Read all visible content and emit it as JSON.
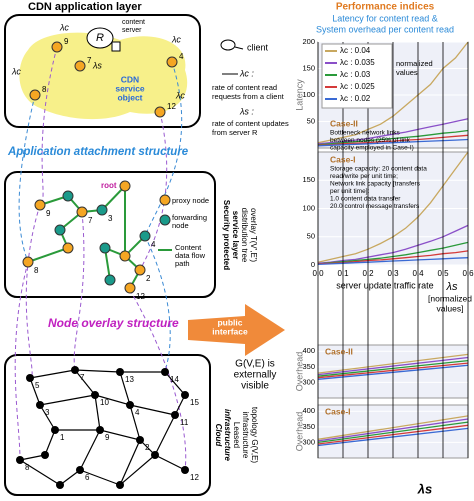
{
  "diagram": {
    "app_layer": {
      "title": "CDN application layer",
      "server": "R",
      "server_label": [
        "content",
        "server"
      ],
      "service_object": [
        "CDN",
        "service",
        "object"
      ],
      "nodes": [
        "9",
        "7",
        "8",
        "4",
        "12"
      ],
      "rates": [
        "λc",
        "λc",
        "λc",
        "λc",
        "λs"
      ]
    },
    "app_legend": {
      "client": "client",
      "lambda_c": "λc :",
      "lambda_c_desc": [
        "rate of content read",
        "requests from a client"
      ],
      "lambda_s": "λs :",
      "lambda_s_desc": [
        "rate of content updates",
        "from server R"
      ]
    },
    "attachment": "Application attachment structure",
    "service_layer": {
      "title": [
        "Security protected",
        "service layer",
        "distribution tree",
        "overlay T(V',E')"
      ],
      "nodes": [
        "9",
        "7",
        "3",
        "root",
        "8",
        "4",
        "2",
        "12"
      ],
      "legend": {
        "proxy": "proxy node",
        "forwarding": [
          "forwarding",
          "node"
        ],
        "flow": [
          "Content",
          "data flow",
          "path"
        ]
      }
    },
    "overlay": "Node overlay structure",
    "public_interface": [
      "public",
      "interface"
    ],
    "visibility": [
      "G(V,E) is",
      "externally",
      "visible"
    ],
    "infrastructure": {
      "title": [
        "Cloud",
        "infrastructure",
        "Leased",
        "infrastructure",
        "topology G(V,E)"
      ],
      "nodes": [
        "5",
        "7",
        "13",
        "14",
        "15",
        "3",
        "4",
        "10",
        "11",
        "1",
        "9",
        "2",
        "8",
        "6",
        "12"
      ]
    }
  },
  "performance": {
    "title": "Performance indices",
    "subtitle": [
      "Latency for content read &",
      "System overhead per content read"
    ]
  },
  "chart_data": [
    {
      "type": "line",
      "ylabel": "Latency",
      "x": [
        0,
        0.05,
        0.1,
        0.15,
        0.2,
        0.25,
        0.3,
        0.35,
        0.4,
        0.45,
        0.5,
        0.55,
        0.6
      ],
      "xlim": [
        0,
        0.6
      ],
      "ylim": [
        0,
        200
      ],
      "yticks": [
        50,
        100,
        150,
        200
      ],
      "series": [
        {
          "name": "λc : 0.04",
          "color": "#c8a860",
          "values": [
            10,
            15,
            20,
            25,
            35,
            45,
            60,
            80,
            100,
            120,
            150,
            170,
            200
          ]
        },
        {
          "name": "λc : 0.035",
          "color": "#8a4fc8",
          "values": [
            8,
            10,
            12,
            15,
            18,
            22,
            26,
            30,
            35,
            40,
            45,
            50,
            55
          ]
        },
        {
          "name": "λc : 0.03",
          "color": "#2a9a3a",
          "values": [
            6,
            8,
            10,
            12,
            14,
            16,
            18,
            20,
            22,
            25,
            28,
            30,
            33
          ]
        },
        {
          "name": "λc : 0.025",
          "color": "#d43a3a",
          "values": [
            5,
            6,
            8,
            9,
            10,
            12,
            13,
            15,
            16,
            18,
            20,
            22,
            24
          ]
        },
        {
          "name": "λc : 0.02",
          "color": "#3a6ad4",
          "values": [
            4,
            5,
            6,
            7,
            8,
            9,
            10,
            11,
            12,
            13,
            14,
            15,
            16
          ]
        }
      ],
      "annotations": {
        "case": "Case-II",
        "note": [
          "Bottleneck network links",
          "between nodes (25% of link",
          "capacity employed in Case-I)"
        ],
        "legend_note": [
          "normalized",
          "values"
        ]
      }
    },
    {
      "type": "line",
      "x": [
        0,
        0.05,
        0.1,
        0.15,
        0.2,
        0.25,
        0.3,
        0.35,
        0.4,
        0.45,
        0.5,
        0.55,
        0.6
      ],
      "xlim": [
        0,
        0.6
      ],
      "ylim": [
        0,
        200
      ],
      "yticks": [
        0,
        50,
        100,
        150
      ],
      "xticks": [
        {
          "value": 0,
          "label": "0.0"
        },
        0.1,
        0.2,
        0.3,
        0.4,
        0.5,
        0.6
      ],
      "xlabel": "server update traffic rate",
      "xlabel2": "λs",
      "xunit": [
        "[normalized",
        "values]"
      ],
      "series": [
        {
          "color": "#c8a860",
          "values": [
            5,
            10,
            15,
            20,
            28,
            38,
            50,
            65,
            85,
            110,
            140,
            170,
            200
          ]
        },
        {
          "color": "#8a4fc8",
          "values": [
            3,
            5,
            8,
            10,
            14,
            18,
            22,
            28,
            35,
            42,
            50,
            60,
            70
          ]
        },
        {
          "color": "#2a9a3a",
          "values": [
            2,
            4,
            6,
            8,
            10,
            12,
            15,
            18,
            22,
            26,
            30,
            35,
            40
          ]
        },
        {
          "color": "#d43a3a",
          "values": [
            2,
            3,
            4,
            6,
            8,
            9,
            11,
            13,
            15,
            17,
            20,
            22,
            25
          ]
        },
        {
          "color": "#3a6ad4",
          "values": [
            1,
            2,
            3,
            4,
            5,
            6,
            7,
            8,
            9,
            10,
            11,
            12,
            13
          ]
        }
      ],
      "annotations": {
        "case": "Case-I",
        "note": [
          "Storage capacity: 20 content data",
          "read/write per unit time;",
          "Network link capacity [transfers",
          "per unit time]:",
          "1.0 content data transfer",
          "20.0 control message transfers"
        ]
      }
    },
    {
      "type": "line",
      "ylabel": "Overhead",
      "x": [
        0,
        0.6
      ],
      "xlim": [
        0,
        0.6
      ],
      "ylim": [
        250,
        420
      ],
      "yticks": [
        300,
        350,
        400
      ],
      "series": [
        {
          "color": "#c8a860",
          "values": [
            330,
            390
          ]
        },
        {
          "color": "#8a4fc8",
          "values": [
            325,
            380
          ]
        },
        {
          "color": "#2a9a3a",
          "values": [
            320,
            370
          ]
        },
        {
          "color": "#d43a3a",
          "values": [
            315,
            362
          ]
        },
        {
          "color": "#3a6ad4",
          "values": [
            310,
            355
          ]
        }
      ],
      "annotations": {
        "case": "Case-II"
      }
    },
    {
      "type": "line",
      "ylabel": "Overhead",
      "xlabel": "λs",
      "x": [
        0,
        0.6
      ],
      "xlim": [
        0,
        0.6
      ],
      "ylim": [
        250,
        420
      ],
      "yticks": [
        300,
        350,
        400
      ],
      "series": [
        {
          "color": "#c8a860",
          "values": [
            310,
            385
          ]
        },
        {
          "color": "#8a4fc8",
          "values": [
            305,
            375
          ]
        },
        {
          "color": "#2a9a3a",
          "values": [
            300,
            365
          ]
        },
        {
          "color": "#d43a3a",
          "values": [
            295,
            355
          ]
        },
        {
          "color": "#3a6ad4",
          "values": [
            290,
            345
          ]
        }
      ],
      "annotations": {
        "case": "Case-I"
      }
    }
  ]
}
